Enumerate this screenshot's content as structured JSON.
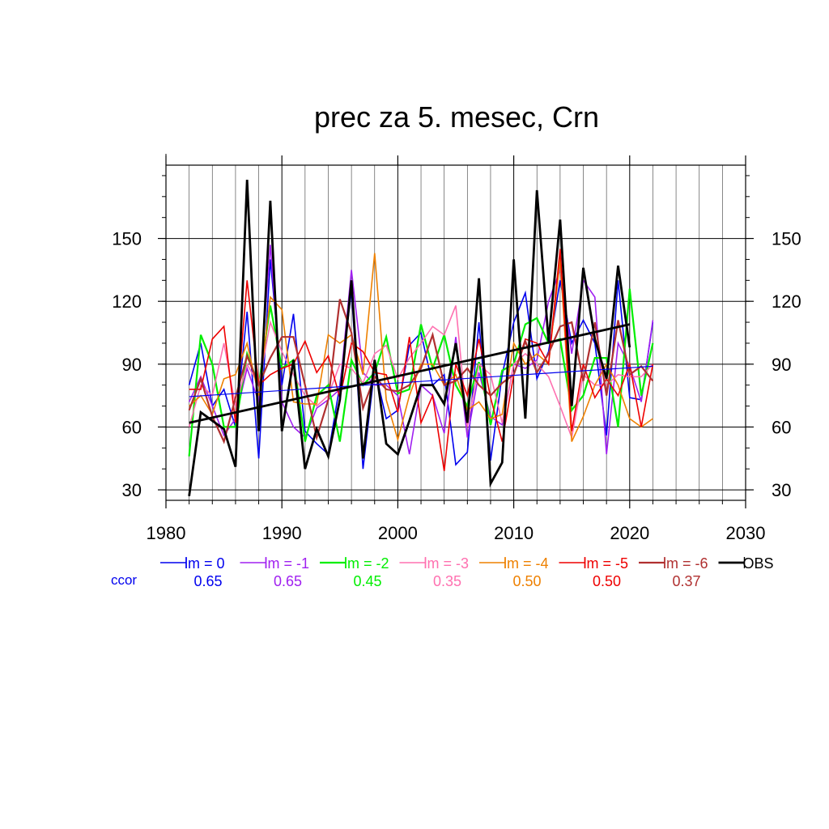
{
  "chart_data": {
    "type": "line",
    "title": "prec za 5. mesec, Crn",
    "xlim": [
      1980,
      2030
    ],
    "ylim": [
      25,
      185
    ],
    "x_ticks": [
      1980,
      1990,
      2000,
      2010,
      2020,
      2030
    ],
    "y_ticks": [
      30,
      60,
      90,
      120,
      150
    ],
    "grid": true,
    "legend_position": "bottom",
    "ccor_label": "ccor",
    "x": [
      1982,
      1983,
      1984,
      1985,
      1986,
      1987,
      1988,
      1989,
      1990,
      1991,
      1992,
      1993,
      1994,
      1995,
      1996,
      1997,
      1998,
      1999,
      2000,
      2001,
      2002,
      2003,
      2004,
      2005,
      2006,
      2007,
      2008,
      2009,
      2010,
      2011,
      2012,
      2013,
      2014,
      2015,
      2016,
      2017,
      2018,
      2019,
      2020,
      2021,
      2022
    ],
    "series": [
      {
        "name": "lm = 0",
        "ccor": "0.65",
        "color": "#0000ee",
        "width": 1.6,
        "values": [
          80,
          100,
          70,
          78,
          60,
          115,
          45,
          140,
          80,
          114,
          58,
          52,
          47,
          80,
          125,
          40,
          88,
          64,
          68,
          99,
          105,
          80,
          85,
          42,
          48,
          110,
          44,
          85,
          110,
          124,
          83,
          96,
          130,
          100,
          111,
          100,
          56,
          130,
          74,
          73,
          110
        ]
      },
      {
        "name": "lm = -1",
        "ccor": "0.65",
        "color": "#a020f0",
        "width": 1.6,
        "values": [
          72,
          84,
          70,
          56,
          64,
          88,
          72,
          147,
          72,
          60,
          55,
          69,
          73,
          78,
          135,
          86,
          80,
          80,
          75,
          47,
          80,
          75,
          57,
          103,
          55,
          86,
          65,
          61,
          90,
          88,
          92,
          120,
          135,
          95,
          130,
          122,
          47,
          100,
          89,
          72,
          111
        ]
      },
      {
        "name": "lm = -2",
        "ccor": "0.45",
        "color": "#00ee00",
        "width": 2.2,
        "values": [
          46,
          104,
          90,
          60,
          60,
          95,
          80,
          118,
          88,
          92,
          53,
          75,
          80,
          53,
          92,
          80,
          86,
          103,
          76,
          78,
          109,
          88,
          104,
          80,
          70,
          91,
          61,
          87,
          90,
          109,
          112,
          100,
          102,
          68,
          75,
          93,
          93,
          60,
          126,
          75,
          100
        ]
      },
      {
        "name": "lm = -3",
        "ccor": "0.35",
        "color": "#ff70b0",
        "width": 1.6,
        "values": [
          60,
          80,
          75,
          100,
          70,
          90,
          80,
          110,
          96,
          85,
          75,
          70,
          75,
          90,
          88,
          81,
          95,
          99,
          83,
          93,
          100,
          108,
          104,
          118,
          60,
          90,
          85,
          62,
          90,
          95,
          90,
          84,
          70,
          55,
          85,
          80,
          80,
          85,
          84,
          84,
          90
        ]
      },
      {
        "name": "lm = -4",
        "ccor": "0.50",
        "color": "#ee8000",
        "width": 1.6,
        "values": [
          70,
          75,
          66,
          83,
          85,
          100,
          75,
          122,
          116,
          72,
          71,
          71,
          104,
          100,
          104,
          85,
          143,
          73,
          54,
          75,
          90,
          90,
          80,
          85,
          68,
          72,
          64,
          66,
          100,
          90,
          95,
          90,
          140,
          53,
          65,
          80,
          90,
          80,
          64,
          60,
          64
        ]
      },
      {
        "name": "lm = -5",
        "ccor": "0.50",
        "color": "#ee0000",
        "width": 1.6,
        "values": [
          78,
          78,
          102,
          108,
          62,
          130,
          80,
          85,
          88,
          90,
          101,
          86,
          94,
          74,
          100,
          96,
          86,
          85,
          67,
          103,
          62,
          75,
          39,
          90,
          75,
          102,
          74,
          53,
          85,
          102,
          100,
          90,
          145,
          58,
          90,
          74,
          83,
          75,
          90,
          60,
          90
        ]
      },
      {
        "name": "lm = -6",
        "ccor": "0.37",
        "color": "#b03030",
        "width": 2.2,
        "values": [
          68,
          83,
          65,
          53,
          74,
          94,
          80,
          93,
          103,
          103,
          80,
          55,
          73,
          121,
          105,
          69,
          84,
          78,
          77,
          80,
          88,
          104,
          80,
          82,
          88,
          80,
          75,
          81,
          85,
          101,
          86,
          95,
          108,
          110,
          82,
          110,
          75,
          111,
          85,
          89,
          82
        ]
      },
      {
        "name": "OBS",
        "ccor": "",
        "color": "#000000",
        "width": 2.8,
        "values": [
          27,
          67,
          63,
          59,
          41,
          178,
          58,
          168,
          58,
          92,
          40,
          59,
          46,
          73,
          130,
          45,
          92,
          52,
          47,
          63,
          80,
          80,
          71,
          100,
          62,
          131,
          33,
          43,
          140,
          64,
          173,
          101,
          159,
          70,
          136,
          102,
          83,
          137,
          98,
          null,
          null
        ]
      }
    ],
    "trend_lines": [
      {
        "of": "lm = 0",
        "color": "#0000ee",
        "width": 1.2,
        "x": [
          1982,
          2022
        ],
        "y": [
          74.5,
          89.0
        ]
      },
      {
        "of": "OBS",
        "color": "#000000",
        "width": 2.8,
        "x": [
          1982,
          2020
        ],
        "y": [
          62,
          109
        ]
      }
    ]
  }
}
